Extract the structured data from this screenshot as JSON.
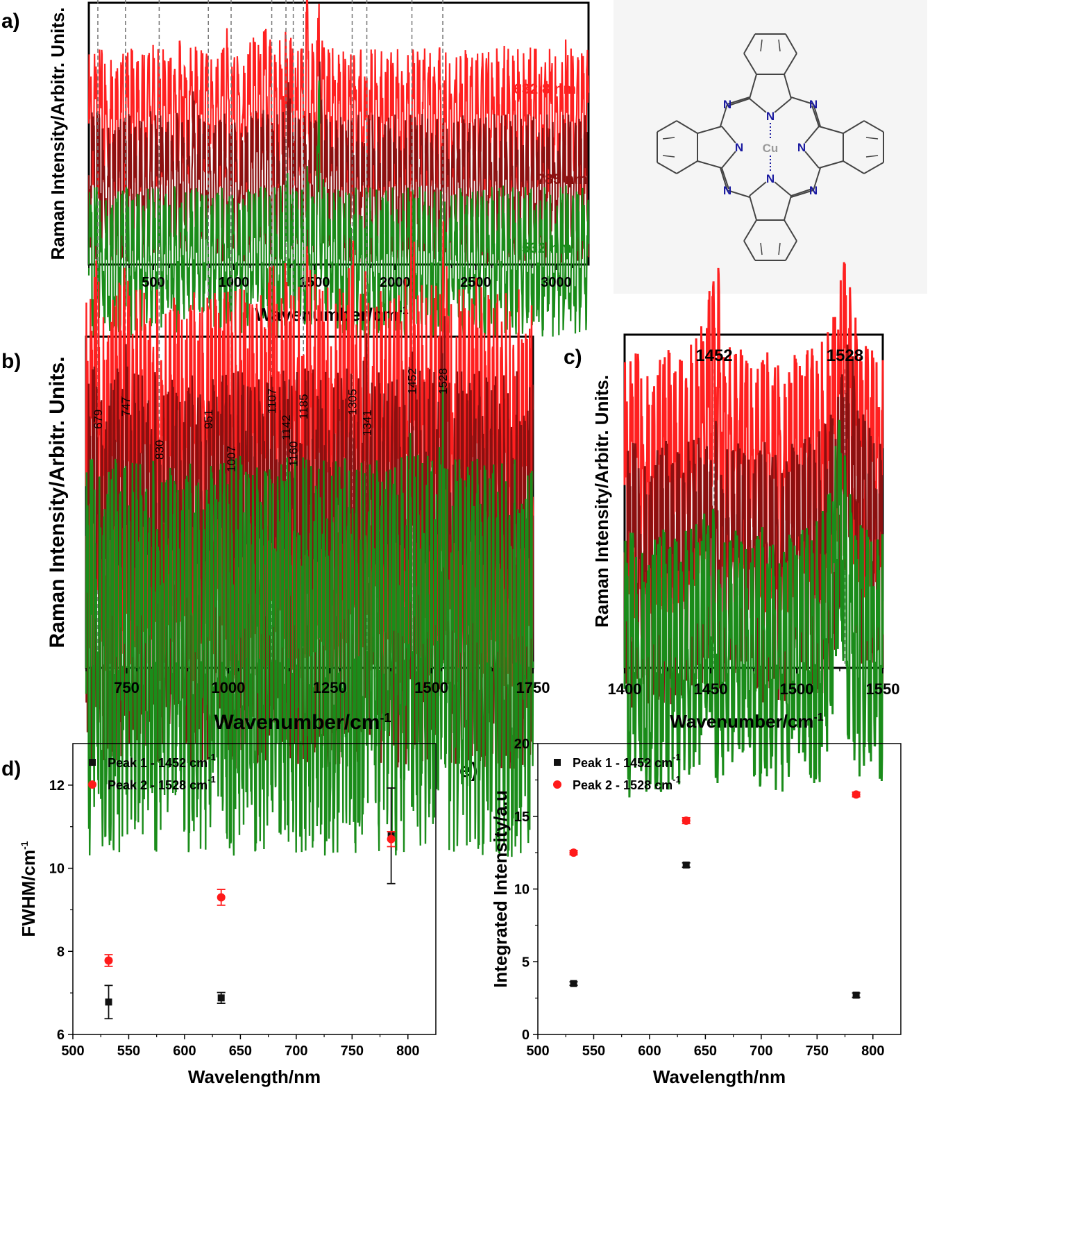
{
  "figure": {
    "panel_letters": [
      "a)",
      "b)",
      "c)",
      "d)",
      "e)"
    ],
    "structure": {
      "atom_labels": {
        "nitrogen": "N",
        "metal": "Cu"
      },
      "colors": {
        "nitrogen": "#1a1aa0",
        "metal": "#999999",
        "bond": "#444444",
        "background": "#f5f5f5"
      }
    }
  },
  "chart_data": [
    {
      "id": "a",
      "type": "line",
      "xlabel": "Wavenumber/cm",
      "xlabel_sup": "-1",
      "ylabel": "Raman Intensity/Arbitr. Units.",
      "xlim": [
        100,
        3200
      ],
      "xticks": [
        500,
        1000,
        1500,
        2000,
        2500,
        3000
      ],
      "series": [
        {
          "name": "632.8 nm",
          "color": "#ff2020",
          "peaks": [
            [
              240,
              0.05
            ],
            [
              480,
              0.45
            ],
            [
              590,
              0.12
            ],
            [
              679,
              0.52
            ],
            [
              747,
              0.62
            ],
            [
              830,
              0.04
            ],
            [
              951,
              0.5
            ],
            [
              1107,
              0.55
            ],
            [
              1142,
              0.32
            ],
            [
              1185,
              0.45
            ],
            [
              1210,
              0.48
            ],
            [
              1305,
              0.75
            ],
            [
              1341,
              0.4
            ],
            [
              1452,
              1.25
            ],
            [
              1528,
              1.12
            ],
            [
              1610,
              0.15
            ],
            [
              2270,
              0.15
            ],
            [
              2670,
              0.12
            ],
            [
              2860,
              0.14
            ],
            [
              3050,
              0.3
            ]
          ]
        },
        {
          "name": "785 nm",
          "color": "#8b1010",
          "peaks": [
            [
              130,
              0.25
            ],
            [
              260,
              0.06
            ],
            [
              480,
              0.08
            ],
            [
              590,
              0.06
            ],
            [
              679,
              0.3
            ],
            [
              747,
              0.5
            ],
            [
              951,
              0.06
            ],
            [
              1142,
              0.28
            ],
            [
              1185,
              0.08
            ],
            [
              1341,
              0.58
            ],
            [
              1452,
              0.18
            ],
            [
              1528,
              1.15
            ]
          ]
        },
        {
          "name": "532 nm",
          "color": "#1a8c1a",
          "peaks": [
            [
              160,
              0.05
            ],
            [
              230,
              0.05
            ],
            [
              260,
              0.06
            ],
            [
              590,
              0.18
            ],
            [
              679,
              0.37
            ],
            [
              747,
              0.15
            ],
            [
              830,
              0.05
            ],
            [
              951,
              0.06
            ],
            [
              1035,
              0.06
            ],
            [
              1142,
              0.26
            ],
            [
              1341,
              0.52
            ],
            [
              1452,
              0.4
            ],
            [
              1528,
              1.78
            ],
            [
              2670,
              0.03
            ],
            [
              2860,
              0.05
            ],
            [
              3050,
              0.08
            ]
          ]
        }
      ]
    },
    {
      "id": "b",
      "type": "line",
      "xlabel": "Wavenumber/cm",
      "xlabel_sup": "-1",
      "ylabel": "Raman Intensity/Arbitr. Units.",
      "xlim": [
        650,
        1750
      ],
      "xticks": [
        750,
        1000,
        1250,
        1500,
        1750
      ],
      "annotations": [
        "679",
        "747",
        "830",
        "951",
        "1007",
        "1107",
        "1142",
        "1160",
        "1185",
        "1305",
        "1341",
        "1452",
        "1528"
      ],
      "annotation_positions": [
        679,
        747,
        830,
        951,
        1007,
        1107,
        1142,
        1160,
        1185,
        1305,
        1341,
        1452,
        1528
      ],
      "series": [
        {
          "name": "632.8 nm",
          "color": "#ff2020",
          "peaks": [
            [
              679,
              0.38
            ],
            [
              700,
              0.05
            ],
            [
              747,
              0.46
            ],
            [
              780,
              0.03
            ],
            [
              830,
              0.02
            ],
            [
              951,
              0.38
            ],
            [
              1007,
              0.02
            ],
            [
              1107,
              0.4
            ],
            [
              1142,
              0.26
            ],
            [
              1160,
              0.05
            ],
            [
              1195,
              0.32
            ],
            [
              1220,
              0.33
            ],
            [
              1305,
              0.5
            ],
            [
              1341,
              0.28
            ],
            [
              1452,
              0.8
            ],
            [
              1528,
              0.78
            ],
            [
              1610,
              0.1
            ]
          ]
        },
        {
          "name": "785 nm",
          "color": "#8b1010",
          "peaks": [
            [
              679,
              0.23
            ],
            [
              747,
              0.34
            ],
            [
              830,
              0.03
            ],
            [
              951,
              0.03
            ],
            [
              1007,
              0.02
            ],
            [
              1107,
              0.03
            ],
            [
              1142,
              0.18
            ],
            [
              1185,
              0.05
            ],
            [
              1210,
              0.06
            ],
            [
              1305,
              0.07
            ],
            [
              1341,
              0.55
            ],
            [
              1452,
              0.15
            ],
            [
              1528,
              0.75
            ]
          ]
        },
        {
          "name": "532 nm",
          "color": "#1a8c1a",
          "peaks": [
            [
              679,
              0.23
            ],
            [
              747,
              0.1
            ],
            [
              830,
              0.04
            ],
            [
              951,
              0.04
            ],
            [
              1007,
              0.02
            ],
            [
              1035,
              0.07
            ],
            [
              1142,
              0.17
            ],
            [
              1185,
              0.03
            ],
            [
              1341,
              0.4
            ],
            [
              1452,
              0.3
            ],
            [
              1480,
              0.05
            ],
            [
              1525,
              0.72
            ],
            [
              1590,
              0.03
            ]
          ]
        }
      ]
    },
    {
      "id": "c",
      "type": "line",
      "xlabel": "Wavenumber/cm",
      "xlabel_sup": "-1",
      "ylabel": "Raman Intensity/Arbitr. Units.",
      "xlim": [
        1400,
        1550
      ],
      "xticks": [
        1400,
        1450,
        1500,
        1550
      ],
      "annotations": [
        "1452",
        "1528"
      ],
      "annotation_positions": [
        1452,
        1528
      ],
      "series": [
        {
          "name": "632.8 nm",
          "color": "#ff2020",
          "peaks": [
            [
              1452,
              1.0,
              4.5
            ],
            [
              1528,
              0.92,
              5.0
            ]
          ]
        },
        {
          "name": "785 nm",
          "color": "#8b1010",
          "peaks": [
            [
              1452,
              0.2,
              6.0
            ],
            [
              1530,
              0.98,
              6.0
            ]
          ]
        },
        {
          "name": "532 nm",
          "color": "#1a8c1a",
          "peaks": [
            [
              1410,
              0.03,
              3.0
            ],
            [
              1427,
              0.06,
              2.5
            ],
            [
              1448,
              0.42,
              3.5
            ],
            [
              1465,
              0.04,
              3.0
            ],
            [
              1479,
              0.06,
              3.0
            ],
            [
              1525,
              1.12,
              4.5
            ]
          ]
        }
      ]
    },
    {
      "id": "d",
      "type": "scatter",
      "xlabel": "Wavelength/nm",
      "ylabel": "FWHM/cm",
      "ylabel_sup": "-1",
      "xlim": [
        500,
        825
      ],
      "ylim": [
        6,
        13
      ],
      "xticks": [
        500,
        550,
        600,
        650,
        700,
        750,
        800
      ],
      "yticks": [
        6,
        8,
        10,
        12
      ],
      "series": [
        {
          "name": "Peak 1 - 1452 cm",
          "name_sup": "-1",
          "color": "#111111",
          "marker": "square",
          "x": [
            532,
            632.8,
            785
          ],
          "y": [
            6.78,
            6.88,
            10.78
          ],
          "err": [
            0.4,
            0.13,
            1.15
          ]
        },
        {
          "name": "Peak 2 - 1528 cm",
          "name_sup": "-1",
          "color": "#ff1a1a",
          "marker": "circle",
          "x": [
            532,
            632.8,
            785
          ],
          "y": [
            7.78,
            9.3,
            10.7
          ],
          "err": [
            0.14,
            0.19,
            0.18
          ]
        }
      ]
    },
    {
      "id": "e",
      "type": "scatter",
      "xlabel": "Wavelength/nm",
      "ylabel": "Integrated Intensity/a.u",
      "xlim": [
        500,
        825
      ],
      "ylim": [
        0,
        20
      ],
      "xticks": [
        500,
        550,
        600,
        650,
        700,
        750,
        800
      ],
      "yticks": [
        0,
        5,
        10,
        15,
        20
      ],
      "series": [
        {
          "name": "Peak 1 - 1452 cm",
          "name_sup": "-1",
          "color": "#111111",
          "marker": "square",
          "x": [
            532,
            632.8,
            785
          ],
          "y": [
            3.5,
            11.65,
            2.7
          ],
          "err": [
            0.12,
            0.15,
            0.15
          ]
        },
        {
          "name": "Peak 2 - 1528 cm",
          "name_sup": "-1",
          "color": "#ff1a1a",
          "marker": "circle",
          "x": [
            532,
            632.8,
            785
          ],
          "y": [
            12.5,
            14.7,
            16.5
          ],
          "err": [
            0.15,
            0.2,
            0.16
          ]
        }
      ]
    }
  ]
}
